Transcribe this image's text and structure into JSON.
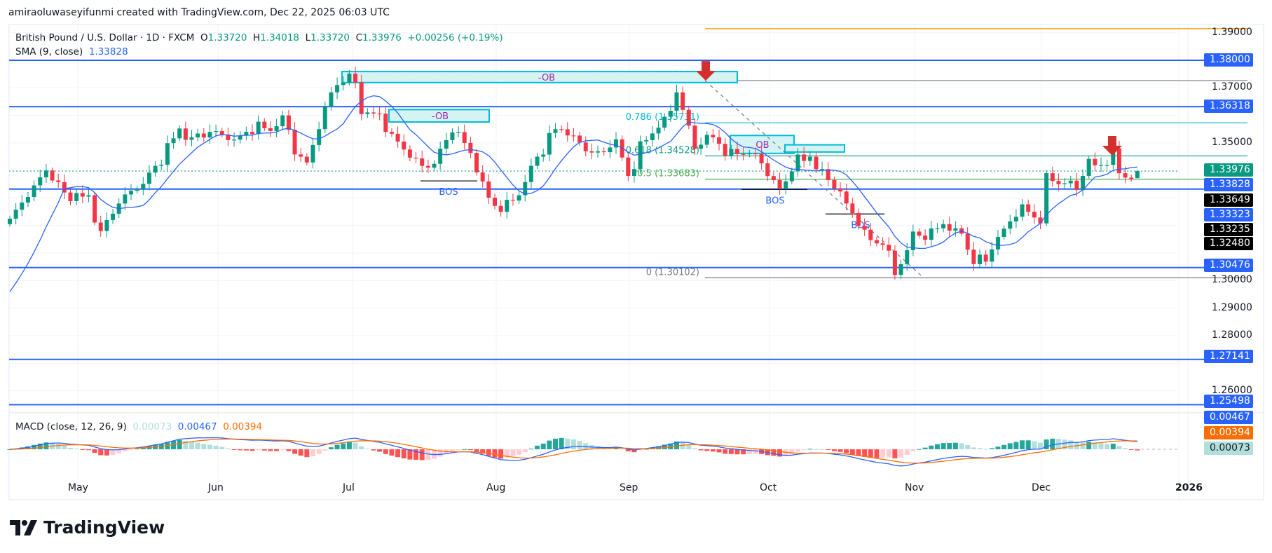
{
  "header": {
    "credit": "amiraoluwaseyifunmi created with TradingView.com, Dec 22, 2025 06:03 UTC"
  },
  "legend": {
    "symbol": "British Pound / U.S. Dollar · 1D · FXCM",
    "open_label": "O",
    "open": "1.33720",
    "high_label": "H",
    "high": "1.34018",
    "low_label": "L",
    "low": "1.33720",
    "close_label": "C",
    "close": "1.33976",
    "change": "+0.00256 (+0.19%)",
    "sma_label": "SMA (9, close)",
    "sma_value": "1.33828"
  },
  "macd_legend": {
    "label": "MACD (close, 12, 26, 9)",
    "hist": "0.00073",
    "macd": "0.00467",
    "signal": "0.00394"
  },
  "branding": {
    "logo_text": "TradingView"
  },
  "colors": {
    "up": "#089981",
    "down": "#f23645",
    "sma": "#2962ff",
    "hline": "#2962ff",
    "macd": "#2962ff",
    "signal": "#ff6d00",
    "hist_up_strong": "#26a69a",
    "hist_up_weak": "#b2dfdb",
    "hist_down_strong": "#ff5252",
    "hist_down_weak": "#ffcdd2",
    "ob_fill": "#d4f3f7",
    "ob_border": "#00bcd4",
    "ob_text": "#9c27b0",
    "fib_line": "#787b86",
    "orange": "#ff9800",
    "arrow": "#d32f2f"
  },
  "chart_data": {
    "type": "candlestick",
    "title": "British Pound / U.S. Dollar · 1D · FXCM",
    "price_axis": {
      "ticks": [
        "1.39000",
        "1.38000",
        "1.37000",
        "1.36000",
        "1.35000",
        "1.34000",
        "1.33000",
        "1.32000",
        "1.31000",
        "1.30000",
        "1.29000",
        "1.28000",
        "1.26000"
      ],
      "range": [
        1.25,
        1.392
      ]
    },
    "time_axis": {
      "ticks": [
        "May",
        "Jun",
        "Jul",
        "Aug",
        "Sep",
        "Oct",
        "Nov",
        "Dec",
        "2026"
      ]
    },
    "price_tags": [
      {
        "value": "1.38000",
        "bg": "#2962ff",
        "fg": "#ffffff"
      },
      {
        "value": "1.36318",
        "bg": "#2962ff",
        "fg": "#ffffff"
      },
      {
        "value": "1.33976",
        "bg": "#089981",
        "fg": "#ffffff"
      },
      {
        "value": "1.33828",
        "bg": "#2962ff",
        "fg": "#ffffff"
      },
      {
        "value": "1.33649",
        "bg": "#000000",
        "fg": "#ffffff"
      },
      {
        "value": "1.33323",
        "bg": "#2962ff",
        "fg": "#ffffff"
      },
      {
        "value": "1.33235",
        "bg": "#000000",
        "fg": "#ffffff"
      },
      {
        "value": "1.32480",
        "bg": "#000000",
        "fg": "#ffffff"
      },
      {
        "value": "1.30476",
        "bg": "#2962ff",
        "fg": "#ffffff"
      },
      {
        "value": "1.27141",
        "bg": "#2962ff",
        "fg": "#ffffff"
      },
      {
        "value": "1.25498",
        "bg": "#2962ff",
        "fg": "#ffffff"
      }
    ],
    "horizontal_levels": [
      1.38,
      1.36318,
      1.33323,
      1.30476,
      1.27141,
      1.25498
    ],
    "fibonacci": [
      {
        "level": "1",
        "price": "1.37264"
      },
      {
        "level": "0.786",
        "price": "1.35731"
      },
      {
        "level": "0.618",
        "price": "1.34528"
      },
      {
        "level": "0.5",
        "price": "1.33683"
      },
      {
        "level": "0",
        "price": "1.30102"
      }
    ],
    "annotations": [
      {
        "type": "order_block",
        "label": "-OB",
        "top": 1.3759,
        "bottom": 1.3719
      },
      {
        "type": "order_block",
        "label": "-OB",
        "top": 1.3621,
        "bottom": 1.3576
      },
      {
        "type": "order_block",
        "label": "OB",
        "top": 1.3527,
        "bottom": 1.3462
      },
      {
        "type": "order_block",
        "label": "OB",
        "top": 1.3493,
        "bottom": 1.3467
      },
      {
        "type": "bos",
        "label": "BOS",
        "price": 1.3361
      },
      {
        "type": "bos",
        "label": "BOS",
        "price": 1.3329
      },
      {
        "type": "bos",
        "label": "BOS",
        "price": 1.324
      },
      {
        "type": "arrow_down",
        "near": "Sep peak 1.3726"
      },
      {
        "type": "arrow_down",
        "near": "Dec high 1.3453"
      }
    ],
    "sma_last": 1.33828,
    "last_close": 1.33976,
    "macd": {
      "hist": 0.00073,
      "macd": 0.00467,
      "signal": 0.00394
    }
  }
}
